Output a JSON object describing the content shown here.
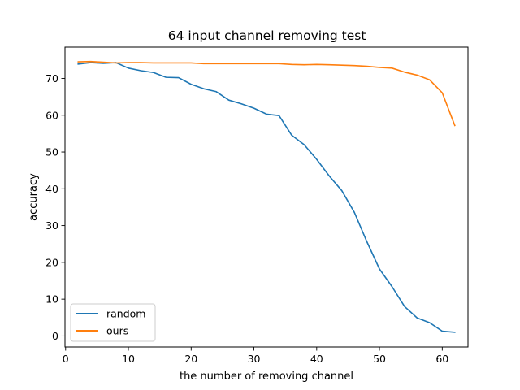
{
  "chart_data": {
    "type": "line",
    "title": "64 input channel removing test",
    "xlabel": "the number of removing channel",
    "ylabel": "accuracy",
    "xlim": [
      -0.1,
      64.1
    ],
    "ylim": [
      -3.0,
      78.5
    ],
    "xticks": [
      0,
      10,
      20,
      30,
      40,
      50,
      60
    ],
    "yticks": [
      0,
      10,
      20,
      30,
      40,
      50,
      60,
      70
    ],
    "grid": false,
    "legend": "lower-left",
    "x": [
      2,
      4,
      6,
      8,
      10,
      12,
      14,
      16,
      18,
      20,
      22,
      24,
      26,
      28,
      30,
      32,
      34,
      36,
      38,
      40,
      42,
      44,
      46,
      48,
      50,
      52,
      54,
      56,
      58,
      60,
      62
    ],
    "series": [
      {
        "name": "random",
        "color": "#1f77b4",
        "values": [
          73.9,
          74.3,
          74.1,
          74.3,
          72.8,
          72.1,
          71.6,
          70.3,
          70.2,
          68.4,
          67.2,
          66.4,
          64.1,
          63.1,
          61.9,
          60.3,
          59.9,
          54.6,
          52.0,
          48.0,
          43.5,
          39.5,
          33.6,
          25.6,
          18.2,
          13.4,
          8.0,
          4.9,
          3.6,
          1.3,
          1.0
        ]
      },
      {
        "name": "ours",
        "color": "#ff7f0e",
        "values": [
          74.5,
          74.6,
          74.4,
          74.2,
          74.3,
          74.3,
          74.2,
          74.2,
          74.2,
          74.2,
          74.0,
          74.0,
          74.0,
          74.0,
          74.0,
          74.0,
          74.0,
          73.8,
          73.7,
          73.8,
          73.7,
          73.6,
          73.5,
          73.3,
          73.0,
          72.8,
          71.7,
          70.9,
          69.6,
          66.1,
          57.2
        ]
      }
    ]
  }
}
